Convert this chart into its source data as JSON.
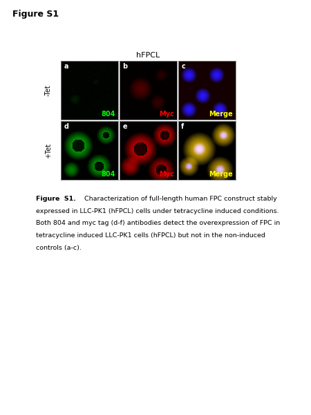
{
  "title": "Figure S1",
  "hfpcl_label": "hFPCL",
  "row_labels": [
    "-Tet",
    "+Tet"
  ],
  "col_labels": [
    "804",
    "Myc",
    "Merge"
  ],
  "panel_letters": [
    [
      "a",
      "b",
      "c"
    ],
    [
      "d",
      "e",
      "f"
    ]
  ],
  "label_colors": [
    "#00ff00",
    "#ff0000",
    "#ffff00"
  ],
  "caption_bold": "Figure  S1.",
  "caption_normal": " Characterization of full-length human FPC construct stably expressed in LLC-PK1 (hFPCL) cells under tetracycline induced conditions. Both 804 and myc tag (d-f) antibodies detect the overexpression of FPC in tetracycline induced LLC-PK1 cells (hFPCL) but not in the non-induced controls (a-c).",
  "bg_color": "#ffffff"
}
